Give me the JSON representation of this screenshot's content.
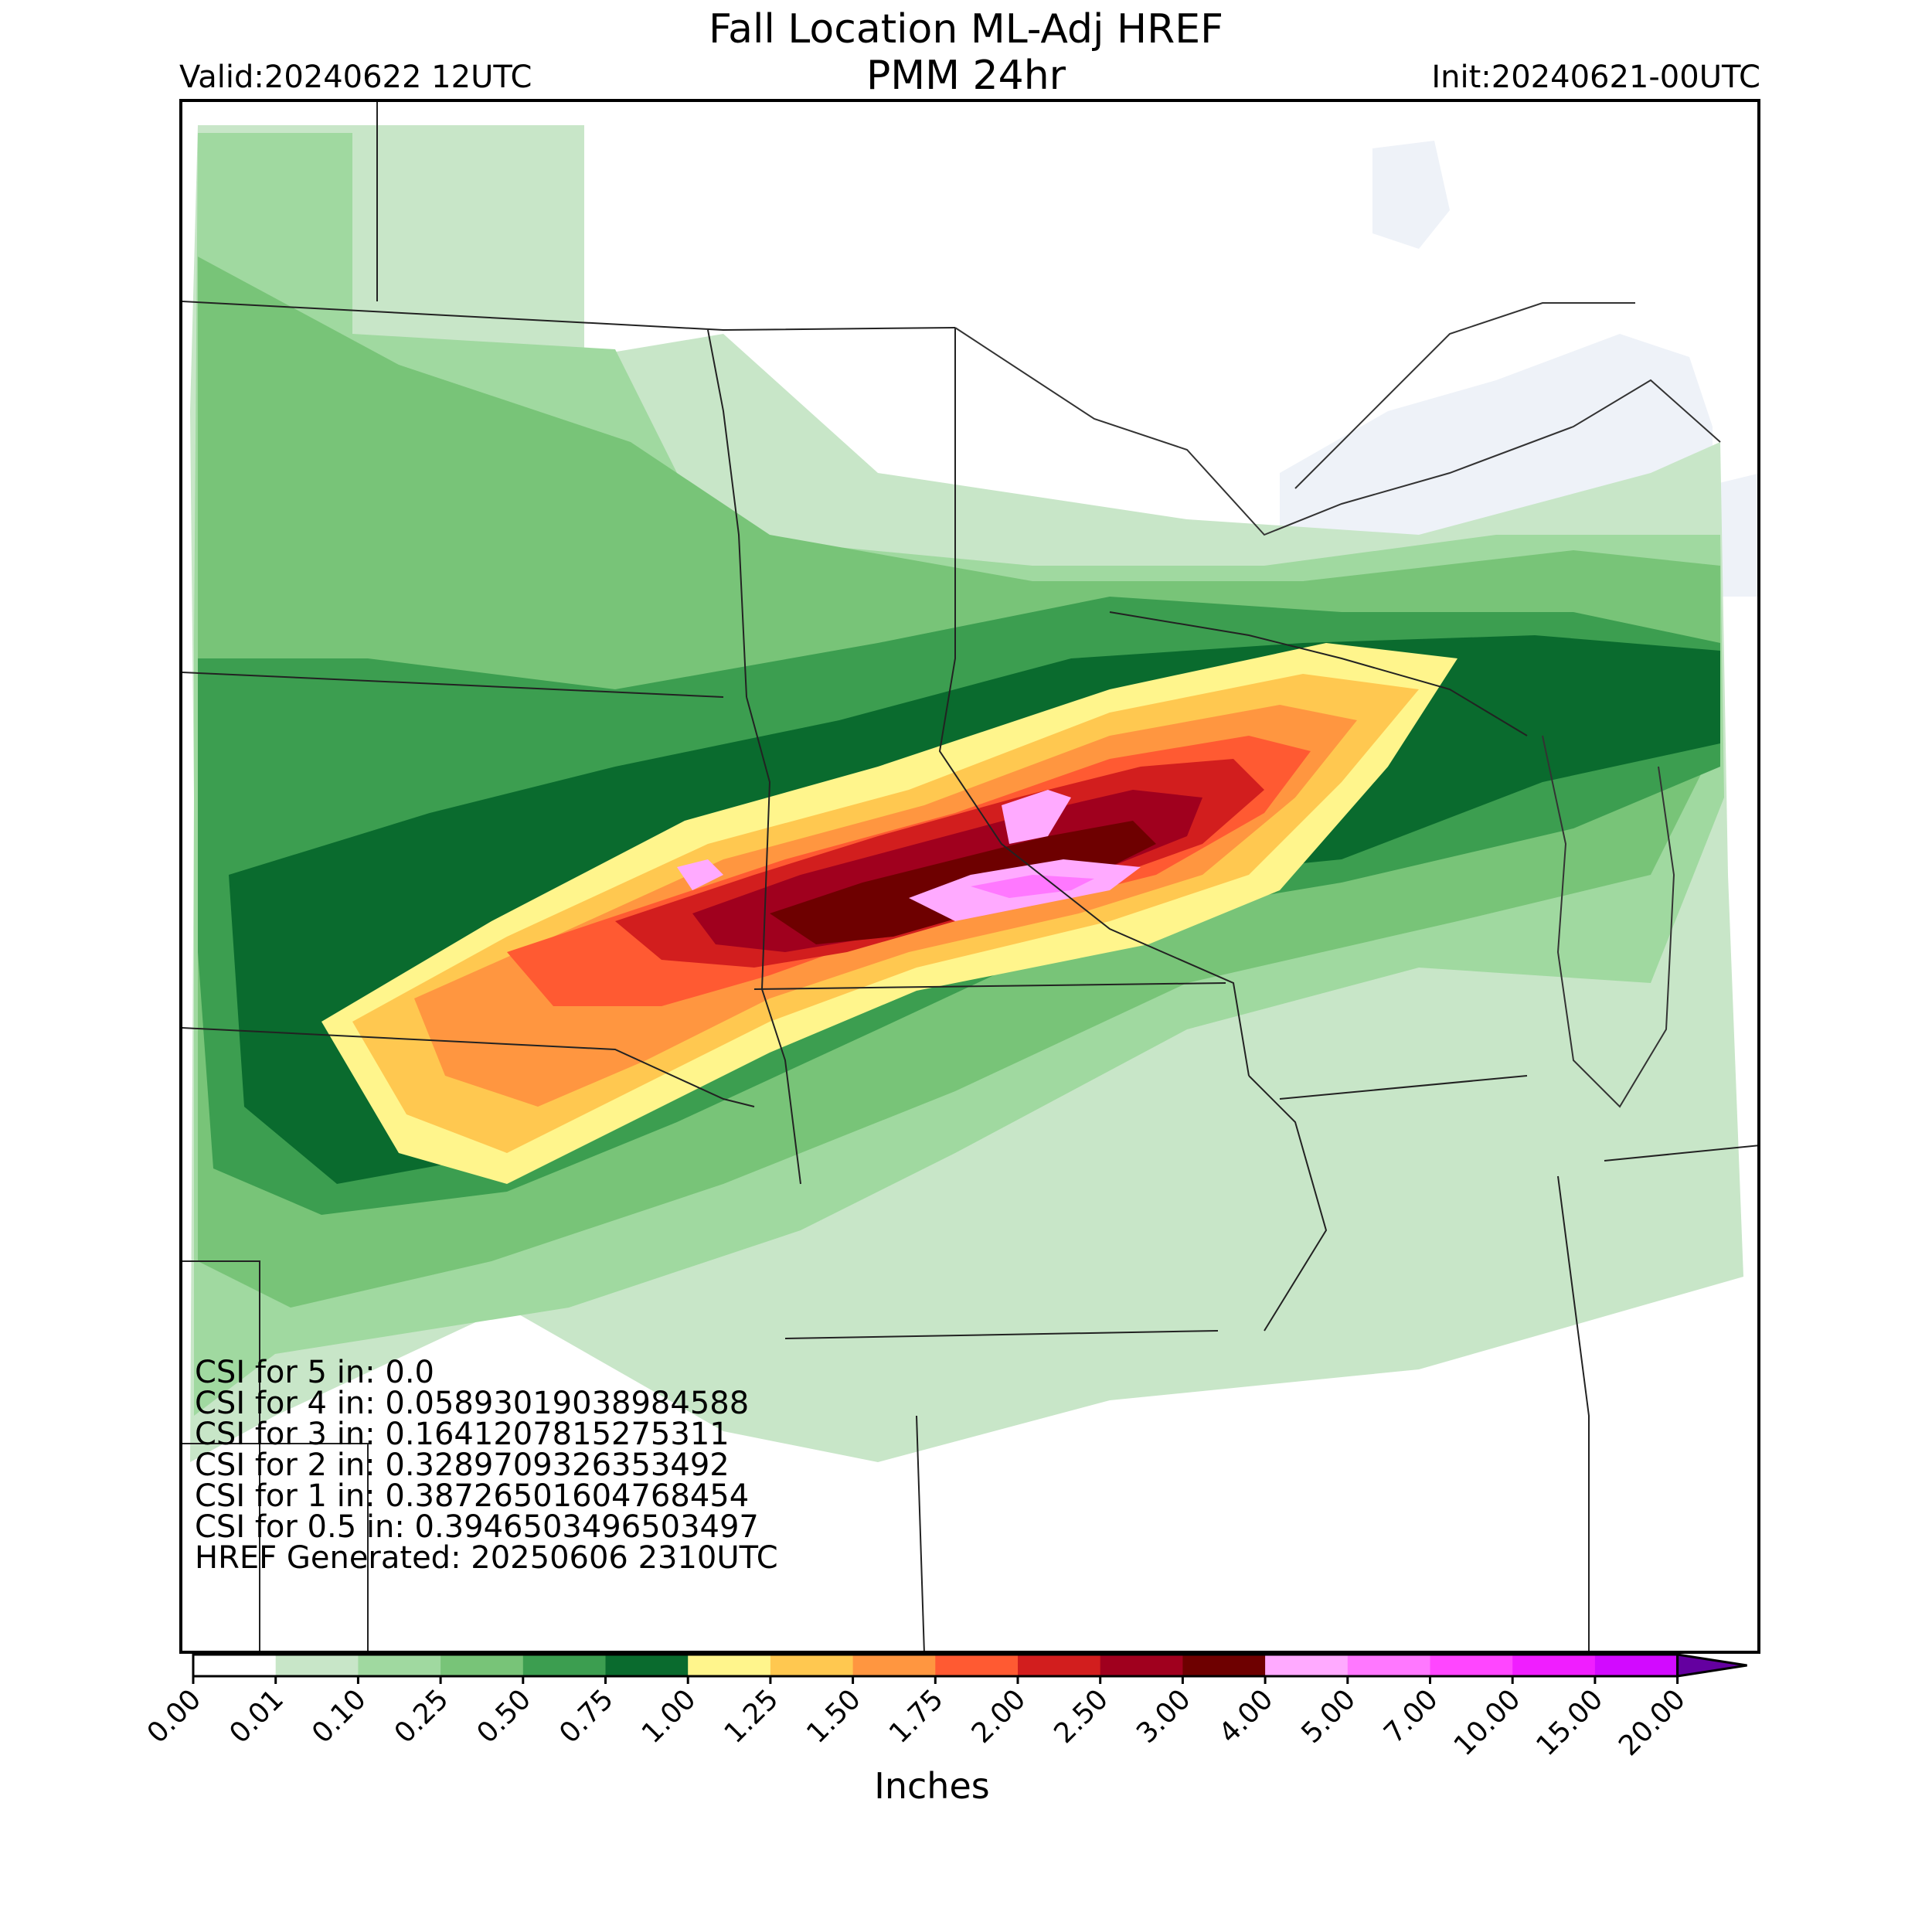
{
  "header": {
    "title_line1": "Fall Location ML-Adj HREF",
    "title_line2": "PMM 24hr",
    "valid": "Valid:20240622 12UTC",
    "init": "Init:20240621-00UTC"
  },
  "stats": {
    "lines": [
      "CSI for 5 in: 0.0",
      "CSI for 4 in: 0.05893019038984588",
      "CSI for 3 in: 0.1641207815275311",
      "CSI for 2 in: 0.3289709326353492",
      "CSI for 1 in: 0.38726501604768454",
      "CSI for 0.5 in: 0.3946503496503497",
      "HREF Generated: 20250606 2310UTC"
    ]
  },
  "colorbar": {
    "label": "Inches",
    "ticks": [
      "0.00",
      "0.01",
      "0.10",
      "0.25",
      "0.50",
      "0.75",
      "1.00",
      "1.25",
      "1.50",
      "1.75",
      "2.00",
      "2.50",
      "3.00",
      "4.00",
      "5.00",
      "7.00",
      "10.00",
      "15.00",
      "20.00"
    ],
    "colors": [
      "#ffffff",
      "#c8e6c8",
      "#a0d9a0",
      "#78c478",
      "#3c9e50",
      "#0a6b2e",
      "#fff58c",
      "#ffc850",
      "#ff9640",
      "#ff5a32",
      "#d21e1e",
      "#a0001e",
      "#6e0000",
      "#ffaaff",
      "#ff78ff",
      "#ff46ff",
      "#f01eff",
      "#d20aff",
      "#9600c8"
    ],
    "extend_color": "#6400a0"
  },
  "map": {
    "region": "Upper Midwest / Northern Plains",
    "water_color": "#eef2f8",
    "precip_bands": [
      {
        "value": 0.01,
        "color": "#c8e6c8"
      },
      {
        "value": 0.1,
        "color": "#a0d9a0"
      },
      {
        "value": 0.25,
        "color": "#78c478"
      },
      {
        "value": 0.5,
        "color": "#3c9e50"
      },
      {
        "value": 0.75,
        "color": "#0a6b2e"
      },
      {
        "value": 1.0,
        "color": "#fff58c"
      },
      {
        "value": 1.25,
        "color": "#ffc850"
      },
      {
        "value": 1.5,
        "color": "#ff9640"
      },
      {
        "value": 1.75,
        "color": "#ff5a32"
      },
      {
        "value": 2.0,
        "color": "#d21e1e"
      },
      {
        "value": 2.5,
        "color": "#a0001e"
      },
      {
        "value": 3.0,
        "color": "#6e0000"
      },
      {
        "value": 4.0,
        "color": "#ffaaff"
      },
      {
        "value": 5.0,
        "color": "#ff78ff"
      }
    ]
  }
}
